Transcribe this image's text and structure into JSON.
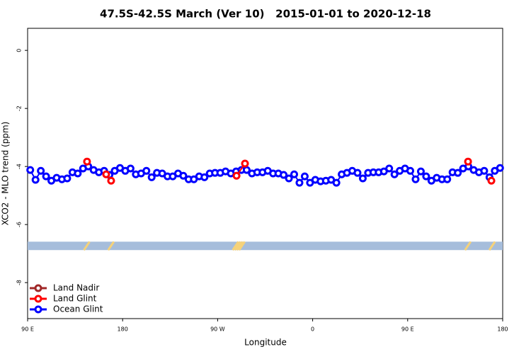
{
  "chart_data": {
    "type": "line",
    "title": "47.5S-42.5S March (Ver 10)   2015-01-01 to 2020-12-18",
    "xlabel": "Longitude",
    "ylabel": "XCO2 - MLO trend (ppm)",
    "xlim": [
      90,
      540
    ],
    "ylim": [
      -9.24,
      0.76
    ],
    "xticks": [
      {
        "value": 90,
        "label": "90 E"
      },
      {
        "value": 180,
        "label": "180"
      },
      {
        "value": 270,
        "label": "90 W"
      },
      {
        "value": 360,
        "label": "0"
      },
      {
        "value": 450,
        "label": "90 E"
      },
      {
        "value": 540,
        "label": "180"
      }
    ],
    "yticks": [
      0,
      -2,
      -4,
      -6,
      -8
    ],
    "grid": false,
    "legend": "bottom-left",
    "band": {
      "ylim": [
        -6.88,
        -6.59
      ],
      "color": "#a6bddb",
      "marks_color": "#f5d27a",
      "marks_x": [
        146,
        169,
        287,
        289,
        291,
        293,
        507,
        530
      ]
    },
    "series": [
      {
        "name": "Land Nadir",
        "color": "#a02828",
        "x": [],
        "values": []
      },
      {
        "name": "Land Glint",
        "color": "#ff0000",
        "x": [
          146.3,
          164.4,
          169.1,
          287.9,
          295.9,
          507.2,
          529.3
        ],
        "values": [
          -3.83,
          -4.27,
          -4.49,
          -4.32,
          -3.9,
          -3.83,
          -4.49
        ]
      },
      {
        "name": "Ocean Glint",
        "color": "#0000ff",
        "x": [
          92.5,
          97.5,
          102.5,
          107.5,
          112.5,
          117.5,
          122.5,
          127.5,
          132.5,
          137.5,
          142.5,
          147.5,
          152.5,
          157.5,
          162.5,
          167.5,
          172.5,
          177.5,
          182.5,
          187.5,
          192.5,
          197.5,
          202.5,
          207.5,
          212.5,
          217.5,
          222.5,
          227.5,
          232.5,
          237.5,
          242.5,
          247.5,
          252.5,
          257.5,
          262.5,
          267.5,
          272.5,
          277.5,
          282.5,
          287.5,
          292.5,
          297.5,
          302.5,
          307.5,
          312.5,
          317.5,
          322.5,
          327.5,
          332.5,
          337.5,
          342.5,
          347.5,
          352.5,
          357.5,
          362.5,
          367.5,
          372.5,
          377.5,
          382.5,
          387.5,
          392.5,
          397.5,
          402.5,
          407.5,
          412.5,
          417.5,
          422.5,
          427.5,
          432.5,
          437.5,
          442.5,
          447.5,
          452.5,
          457.5,
          462.5,
          467.5,
          472.5,
          477.5,
          482.5,
          487.5,
          492.5,
          497.5,
          502.5,
          507.5,
          512.5,
          517.5,
          522.5,
          527.5,
          532.5,
          537.5
        ],
        "values": [
          -4.12,
          -4.46,
          -4.15,
          -4.34,
          -4.49,
          -4.39,
          -4.44,
          -4.41,
          -4.2,
          -4.24,
          -4.07,
          -4.0,
          -4.12,
          -4.2,
          -4.15,
          -4.29,
          -4.15,
          -4.05,
          -4.15,
          -4.07,
          -4.27,
          -4.24,
          -4.15,
          -4.37,
          -4.22,
          -4.24,
          -4.34,
          -4.34,
          -4.24,
          -4.32,
          -4.44,
          -4.44,
          -4.34,
          -4.37,
          -4.24,
          -4.22,
          -4.22,
          -4.17,
          -4.24,
          -4.17,
          -4.12,
          -4.12,
          -4.24,
          -4.2,
          -4.2,
          -4.15,
          -4.24,
          -4.24,
          -4.29,
          -4.41,
          -4.27,
          -4.56,
          -4.34,
          -4.56,
          -4.46,
          -4.51,
          -4.49,
          -4.46,
          -4.56,
          -4.27,
          -4.22,
          -4.15,
          -4.22,
          -4.41,
          -4.22,
          -4.2,
          -4.2,
          -4.17,
          -4.07,
          -4.27,
          -4.15,
          -4.07,
          -4.15,
          -4.44,
          -4.17,
          -4.34,
          -4.49,
          -4.39,
          -4.44,
          -4.44,
          -4.2,
          -4.22,
          -4.07,
          -4.0,
          -4.12,
          -4.2,
          -4.15,
          -4.37,
          -4.15,
          -4.05
        ]
      }
    ]
  }
}
